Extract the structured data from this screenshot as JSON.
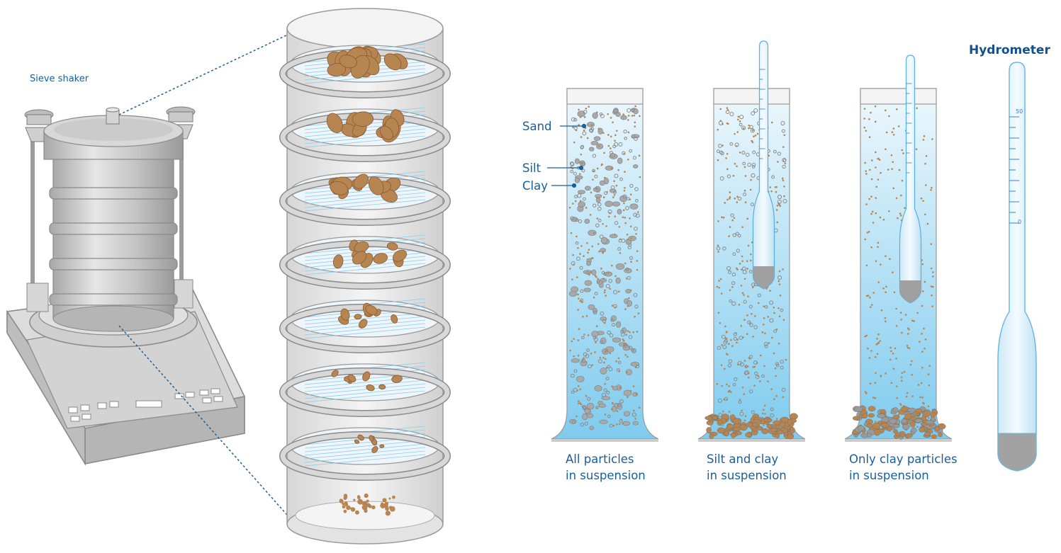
{
  "labels": {
    "sieve_shaker": "Sieve shaker",
    "hydrometer": "Hydrometer",
    "sand": "Sand",
    "silt": "Silt",
    "clay": "Clay"
  },
  "cylinders": [
    {
      "caption_line1": "All particles",
      "caption_line2": "in suspension"
    },
    {
      "caption_line1": "Silt and clay",
      "caption_line2": "in suspension"
    },
    {
      "caption_line1": "Only clay particles",
      "caption_line2": "in suspension"
    }
  ],
  "hydrometer_scale": {
    "top": "50",
    "bottom": "0"
  },
  "colors": {
    "accent_blue": "#1a5e9a",
    "water": "#a9dcf3",
    "particle": "#b78552",
    "sand_grain": "#a9a9a9",
    "metal": "#c9c9c9"
  }
}
